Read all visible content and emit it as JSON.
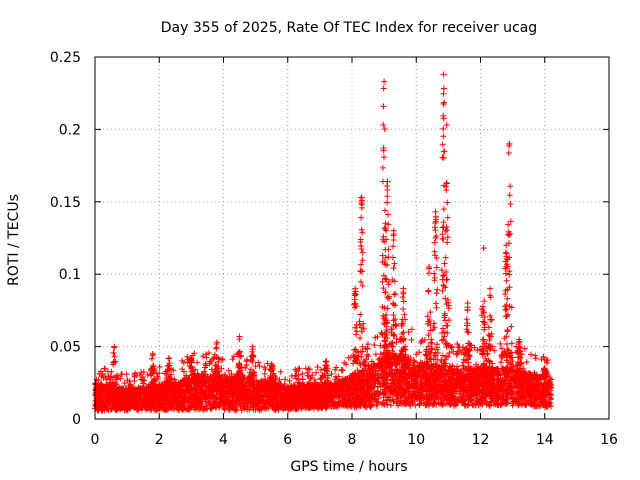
{
  "chart_data": {
    "type": "scatter",
    "title": "Day 355 of 2025, Rate Of TEC Index for receiver ucag",
    "xlabel": "GPS time / hours",
    "ylabel": "ROTI / TECUs",
    "xlim": [
      0,
      16
    ],
    "ylim": [
      0,
      0.25
    ],
    "xticks": [
      0,
      2,
      4,
      6,
      8,
      10,
      12,
      14,
      16
    ],
    "xtick_labels": [
      "0",
      "2",
      "4",
      "6",
      "8",
      "10",
      "12",
      "14",
      "16"
    ],
    "yticks": [
      0,
      0.05,
      0.1,
      0.15,
      0.2,
      0.25
    ],
    "ytick_labels": [
      "0",
      "0.05",
      "0.1",
      "0.15",
      "0.2",
      "0.25"
    ],
    "grid": true,
    "marker": "+",
    "color": "#ff0000",
    "series": [
      {
        "name": "ROTI",
        "data_extent_hours": [
          0,
          14.2
        ],
        "baseline_envelope": {
          "x": [
            0,
            0.5,
            1,
            1.5,
            2,
            2.5,
            3,
            3.5,
            4,
            4.5,
            5,
            5.5,
            6,
            6.5,
            7,
            7.5,
            8,
            8.5,
            9,
            9.5,
            10,
            10.5,
            11,
            11.5,
            12,
            12.5,
            13,
            13.5,
            14,
            14.2
          ],
          "low": [
            0.005,
            0.006,
            0.006,
            0.006,
            0.006,
            0.006,
            0.006,
            0.006,
            0.006,
            0.006,
            0.006,
            0.006,
            0.006,
            0.007,
            0.007,
            0.008,
            0.008,
            0.008,
            0.009,
            0.009,
            0.009,
            0.009,
            0.009,
            0.009,
            0.009,
            0.009,
            0.009,
            0.009,
            0.008,
            0.008
          ],
          "high": [
            0.025,
            0.022,
            0.021,
            0.022,
            0.024,
            0.025,
            0.03,
            0.032,
            0.028,
            0.03,
            0.027,
            0.026,
            0.023,
            0.024,
            0.024,
            0.025,
            0.03,
            0.035,
            0.045,
            0.045,
            0.04,
            0.037,
            0.035,
            0.035,
            0.035,
            0.035,
            0.035,
            0.032,
            0.03,
            0.025
          ]
        },
        "peaks": [
          {
            "x": 0.6,
            "y": 0.05
          },
          {
            "x": 1.8,
            "y": 0.045
          },
          {
            "x": 2.3,
            "y": 0.042
          },
          {
            "x": 3.0,
            "y": 0.042
          },
          {
            "x": 3.8,
            "y": 0.053
          },
          {
            "x": 4.5,
            "y": 0.057
          },
          {
            "x": 4.9,
            "y": 0.05
          },
          {
            "x": 5.5,
            "y": 0.038
          },
          {
            "x": 7.2,
            "y": 0.04
          },
          {
            "x": 8.1,
            "y": 0.09
          },
          {
            "x": 8.3,
            "y": 0.153
          },
          {
            "x": 9.0,
            "y": 0.233
          },
          {
            "x": 9.1,
            "y": 0.164
          },
          {
            "x": 9.3,
            "y": 0.13
          },
          {
            "x": 9.6,
            "y": 0.09
          },
          {
            "x": 10.4,
            "y": 0.105
          },
          {
            "x": 10.6,
            "y": 0.143
          },
          {
            "x": 10.85,
            "y": 0.238
          },
          {
            "x": 10.95,
            "y": 0.203
          },
          {
            "x": 11.6,
            "y": 0.08
          },
          {
            "x": 12.1,
            "y": 0.118
          },
          {
            "x": 12.3,
            "y": 0.09
          },
          {
            "x": 12.8,
            "y": 0.12
          },
          {
            "x": 12.9,
            "y": 0.19
          },
          {
            "x": 13.2,
            "y": 0.055
          },
          {
            "x": 14.0,
            "y": 0.035
          }
        ]
      }
    ]
  }
}
